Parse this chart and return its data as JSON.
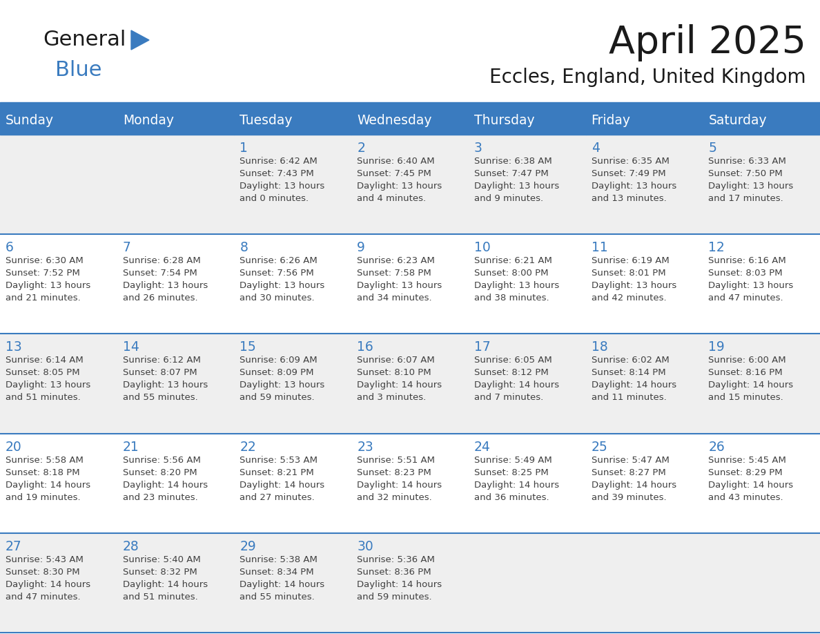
{
  "title": "April 2025",
  "subtitle": "Eccles, England, United Kingdom",
  "days_of_week": [
    "Sunday",
    "Monday",
    "Tuesday",
    "Wednesday",
    "Thursday",
    "Friday",
    "Saturday"
  ],
  "header_bg": "#3a7bbf",
  "header_text": "#ffffff",
  "cell_bg_odd": "#efefef",
  "cell_bg_even": "#ffffff",
  "border_color": "#3a7bbf",
  "day_number_color": "#3a7bbf",
  "cell_text_color": "#404040",
  "calendar": [
    [
      {
        "day": "",
        "text": ""
      },
      {
        "day": "",
        "text": ""
      },
      {
        "day": "1",
        "text": "Sunrise: 6:42 AM\nSunset: 7:43 PM\nDaylight: 13 hours\nand 0 minutes."
      },
      {
        "day": "2",
        "text": "Sunrise: 6:40 AM\nSunset: 7:45 PM\nDaylight: 13 hours\nand 4 minutes."
      },
      {
        "day": "3",
        "text": "Sunrise: 6:38 AM\nSunset: 7:47 PM\nDaylight: 13 hours\nand 9 minutes."
      },
      {
        "day": "4",
        "text": "Sunrise: 6:35 AM\nSunset: 7:49 PM\nDaylight: 13 hours\nand 13 minutes."
      },
      {
        "day": "5",
        "text": "Sunrise: 6:33 AM\nSunset: 7:50 PM\nDaylight: 13 hours\nand 17 minutes."
      }
    ],
    [
      {
        "day": "6",
        "text": "Sunrise: 6:30 AM\nSunset: 7:52 PM\nDaylight: 13 hours\nand 21 minutes."
      },
      {
        "day": "7",
        "text": "Sunrise: 6:28 AM\nSunset: 7:54 PM\nDaylight: 13 hours\nand 26 minutes."
      },
      {
        "day": "8",
        "text": "Sunrise: 6:26 AM\nSunset: 7:56 PM\nDaylight: 13 hours\nand 30 minutes."
      },
      {
        "day": "9",
        "text": "Sunrise: 6:23 AM\nSunset: 7:58 PM\nDaylight: 13 hours\nand 34 minutes."
      },
      {
        "day": "10",
        "text": "Sunrise: 6:21 AM\nSunset: 8:00 PM\nDaylight: 13 hours\nand 38 minutes."
      },
      {
        "day": "11",
        "text": "Sunrise: 6:19 AM\nSunset: 8:01 PM\nDaylight: 13 hours\nand 42 minutes."
      },
      {
        "day": "12",
        "text": "Sunrise: 6:16 AM\nSunset: 8:03 PM\nDaylight: 13 hours\nand 47 minutes."
      }
    ],
    [
      {
        "day": "13",
        "text": "Sunrise: 6:14 AM\nSunset: 8:05 PM\nDaylight: 13 hours\nand 51 minutes."
      },
      {
        "day": "14",
        "text": "Sunrise: 6:12 AM\nSunset: 8:07 PM\nDaylight: 13 hours\nand 55 minutes."
      },
      {
        "day": "15",
        "text": "Sunrise: 6:09 AM\nSunset: 8:09 PM\nDaylight: 13 hours\nand 59 minutes."
      },
      {
        "day": "16",
        "text": "Sunrise: 6:07 AM\nSunset: 8:10 PM\nDaylight: 14 hours\nand 3 minutes."
      },
      {
        "day": "17",
        "text": "Sunrise: 6:05 AM\nSunset: 8:12 PM\nDaylight: 14 hours\nand 7 minutes."
      },
      {
        "day": "18",
        "text": "Sunrise: 6:02 AM\nSunset: 8:14 PM\nDaylight: 14 hours\nand 11 minutes."
      },
      {
        "day": "19",
        "text": "Sunrise: 6:00 AM\nSunset: 8:16 PM\nDaylight: 14 hours\nand 15 minutes."
      }
    ],
    [
      {
        "day": "20",
        "text": "Sunrise: 5:58 AM\nSunset: 8:18 PM\nDaylight: 14 hours\nand 19 minutes."
      },
      {
        "day": "21",
        "text": "Sunrise: 5:56 AM\nSunset: 8:20 PM\nDaylight: 14 hours\nand 23 minutes."
      },
      {
        "day": "22",
        "text": "Sunrise: 5:53 AM\nSunset: 8:21 PM\nDaylight: 14 hours\nand 27 minutes."
      },
      {
        "day": "23",
        "text": "Sunrise: 5:51 AM\nSunset: 8:23 PM\nDaylight: 14 hours\nand 32 minutes."
      },
      {
        "day": "24",
        "text": "Sunrise: 5:49 AM\nSunset: 8:25 PM\nDaylight: 14 hours\nand 36 minutes."
      },
      {
        "day": "25",
        "text": "Sunrise: 5:47 AM\nSunset: 8:27 PM\nDaylight: 14 hours\nand 39 minutes."
      },
      {
        "day": "26",
        "text": "Sunrise: 5:45 AM\nSunset: 8:29 PM\nDaylight: 14 hours\nand 43 minutes."
      }
    ],
    [
      {
        "day": "27",
        "text": "Sunrise: 5:43 AM\nSunset: 8:30 PM\nDaylight: 14 hours\nand 47 minutes."
      },
      {
        "day": "28",
        "text": "Sunrise: 5:40 AM\nSunset: 8:32 PM\nDaylight: 14 hours\nand 51 minutes."
      },
      {
        "day": "29",
        "text": "Sunrise: 5:38 AM\nSunset: 8:34 PM\nDaylight: 14 hours\nand 55 minutes."
      },
      {
        "day": "30",
        "text": "Sunrise: 5:36 AM\nSunset: 8:36 PM\nDaylight: 14 hours\nand 59 minutes."
      },
      {
        "day": "",
        "text": ""
      },
      {
        "day": "",
        "text": ""
      },
      {
        "day": "",
        "text": ""
      }
    ]
  ],
  "logo_text_general": "General",
  "logo_text_blue": "Blue",
  "logo_color_general": "#1a1a1a",
  "logo_color_blue": "#3a7bbf",
  "logo_triangle_color": "#3a7bbf",
  "figsize": [
    11.88,
    9.18
  ],
  "dpi": 100
}
